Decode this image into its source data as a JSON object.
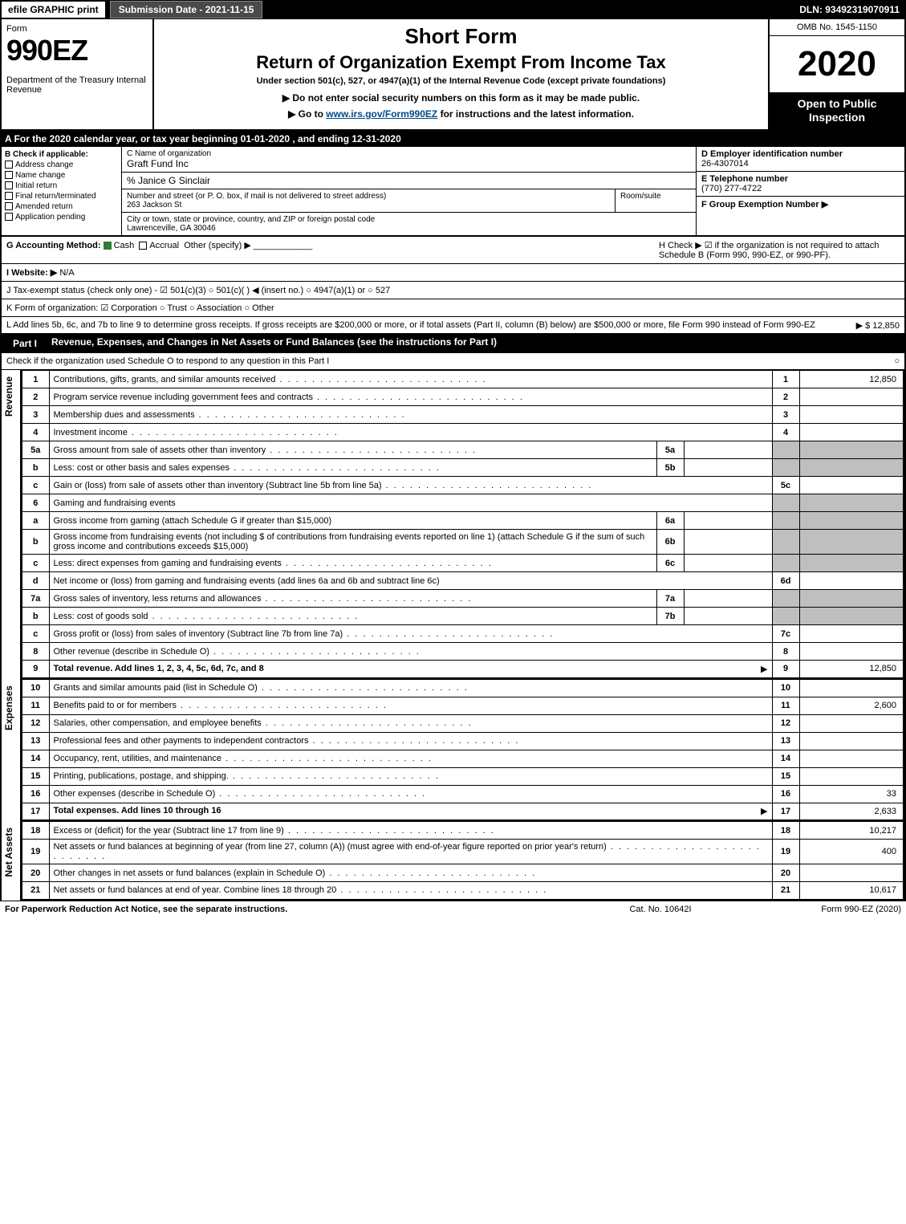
{
  "topbar": {
    "efile": "efile GRAPHIC print",
    "submission": "Submission Date - 2021-11-15",
    "dln": "DLN: 93492319070911"
  },
  "header": {
    "form_word": "Form",
    "form_num": "990EZ",
    "dept": "Department of the Treasury\nInternal Revenue",
    "shortform": "Short Form",
    "title": "Return of Organization Exempt From Income Tax",
    "subtitle": "Under section 501(c), 527, or 4947(a)(1) of the Internal Revenue Code (except private foundations)",
    "notice1": "▶ Do not enter social security numbers on this form as it may be made public.",
    "notice2_pre": "▶ Go to ",
    "notice2_link": "www.irs.gov/Form990EZ",
    "notice2_post": " for instructions and the latest information.",
    "omb": "OMB No. 1545-1150",
    "year": "2020",
    "inspect": "Open to Public Inspection"
  },
  "period": "A For the 2020 calendar year, or tax year beginning 01-01-2020 , and ending 12-31-2020",
  "boxB": {
    "title": "B Check if applicable:",
    "opts": [
      "Address change",
      "Name change",
      "Initial return",
      "Final return/terminated",
      "Amended return",
      "Application pending"
    ]
  },
  "boxC": {
    "name_label": "C Name of organization",
    "name": "Graft Fund Inc",
    "care_of": "% Janice G Sinclair",
    "street_label": "Number and street (or P. O. box, if mail is not delivered to street address)",
    "street": "263 Jackson St",
    "room_label": "Room/suite",
    "city_label": "City or town, state or province, country, and ZIP or foreign postal code",
    "city": "Lawrenceville, GA  30046"
  },
  "boxD": {
    "ein_label": "D Employer identification number",
    "ein": "26-4307014",
    "tel_label": "E Telephone number",
    "tel": "(770) 277-4722",
    "group_label": "F Group Exemption Number  ▶"
  },
  "rowG": {
    "label": "G Accounting Method:",
    "cash": "Cash",
    "accrual": "Accrual",
    "other": "Other (specify) ▶"
  },
  "rowH": "H  Check ▶ ☑ if the organization is not required to attach Schedule B (Form 990, 990-EZ, or 990-PF).",
  "rowI": {
    "label": "I Website: ▶",
    "val": "N/A"
  },
  "rowJ": "J Tax-exempt status (check only one) - ☑ 501(c)(3)  ○ 501(c)(  ) ◀ (insert no.)  ○ 4947(a)(1) or  ○ 527",
  "rowK": "K Form of organization:  ☑ Corporation  ○ Trust  ○ Association  ○ Other",
  "rowL": {
    "text": "L Add lines 5b, 6c, and 7b to line 9 to determine gross receipts. If gross receipts are $200,000 or more, or if total assets (Part II, column (B) below) are $500,000 or more, file Form 990 instead of Form 990-EZ",
    "amount": "▶ $ 12,850"
  },
  "part1": {
    "label": "Part I",
    "title": "Revenue, Expenses, and Changes in Net Assets or Fund Balances (see the instructions for Part I)",
    "sub": "Check if the organization used Schedule O to respond to any question in this Part I",
    "sub_box": "○"
  },
  "sections": {
    "revenue": "Revenue",
    "expenses": "Expenses",
    "netassets": "Net Assets"
  },
  "lines": {
    "l1": {
      "n": "1",
      "d": "Contributions, gifts, grants, and similar amounts received",
      "rn": "1",
      "rv": "12,850"
    },
    "l2": {
      "n": "2",
      "d": "Program service revenue including government fees and contracts",
      "rn": "2",
      "rv": ""
    },
    "l3": {
      "n": "3",
      "d": "Membership dues and assessments",
      "rn": "3",
      "rv": ""
    },
    "l4": {
      "n": "4",
      "d": "Investment income",
      "rn": "4",
      "rv": ""
    },
    "l5a": {
      "n": "5a",
      "d": "Gross amount from sale of assets other than inventory",
      "mn": "5a",
      "mv": ""
    },
    "l5b": {
      "n": "b",
      "d": "Less: cost or other basis and sales expenses",
      "mn": "5b",
      "mv": ""
    },
    "l5c": {
      "n": "c",
      "d": "Gain or (loss) from sale of assets other than inventory (Subtract line 5b from line 5a)",
      "rn": "5c",
      "rv": ""
    },
    "l6": {
      "n": "6",
      "d": "Gaming and fundraising events"
    },
    "l6a": {
      "n": "a",
      "d": "Gross income from gaming (attach Schedule G if greater than $15,000)",
      "mn": "6a",
      "mv": ""
    },
    "l6b": {
      "n": "b",
      "d": "Gross income from fundraising events (not including $                  of contributions from fundraising events reported on line 1) (attach Schedule G if the sum of such gross income and contributions exceeds $15,000)",
      "mn": "6b",
      "mv": ""
    },
    "l6c": {
      "n": "c",
      "d": "Less: direct expenses from gaming and fundraising events",
      "mn": "6c",
      "mv": ""
    },
    "l6d": {
      "n": "d",
      "d": "Net income or (loss) from gaming and fundraising events (add lines 6a and 6b and subtract line 6c)",
      "rn": "6d",
      "rv": ""
    },
    "l7a": {
      "n": "7a",
      "d": "Gross sales of inventory, less returns and allowances",
      "mn": "7a",
      "mv": ""
    },
    "l7b": {
      "n": "b",
      "d": "Less: cost of goods sold",
      "mn": "7b",
      "mv": ""
    },
    "l7c": {
      "n": "c",
      "d": "Gross profit or (loss) from sales of inventory (Subtract line 7b from line 7a)",
      "rn": "7c",
      "rv": ""
    },
    "l8": {
      "n": "8",
      "d": "Other revenue (describe in Schedule O)",
      "rn": "8",
      "rv": ""
    },
    "l9": {
      "n": "9",
      "d": "Total revenue. Add lines 1, 2, 3, 4, 5c, 6d, 7c, and 8",
      "rn": "9",
      "rv": "12,850",
      "arrow": "▶"
    },
    "l10": {
      "n": "10",
      "d": "Grants and similar amounts paid (list in Schedule O)",
      "rn": "10",
      "rv": ""
    },
    "l11": {
      "n": "11",
      "d": "Benefits paid to or for members",
      "rn": "11",
      "rv": "2,600"
    },
    "l12": {
      "n": "12",
      "d": "Salaries, other compensation, and employee benefits",
      "rn": "12",
      "rv": ""
    },
    "l13": {
      "n": "13",
      "d": "Professional fees and other payments to independent contractors",
      "rn": "13",
      "rv": ""
    },
    "l14": {
      "n": "14",
      "d": "Occupancy, rent, utilities, and maintenance",
      "rn": "14",
      "rv": ""
    },
    "l15": {
      "n": "15",
      "d": "Printing, publications, postage, and shipping.",
      "rn": "15",
      "rv": ""
    },
    "l16": {
      "n": "16",
      "d": "Other expenses (describe in Schedule O)",
      "rn": "16",
      "rv": "33"
    },
    "l17": {
      "n": "17",
      "d": "Total expenses. Add lines 10 through 16",
      "rn": "17",
      "rv": "2,633",
      "arrow": "▶"
    },
    "l18": {
      "n": "18",
      "d": "Excess or (deficit) for the year (Subtract line 17 from line 9)",
      "rn": "18",
      "rv": "10,217"
    },
    "l19": {
      "n": "19",
      "d": "Net assets or fund balances at beginning of year (from line 27, column (A)) (must agree with end-of-year figure reported on prior year's return)",
      "rn": "19",
      "rv": "400"
    },
    "l20": {
      "n": "20",
      "d": "Other changes in net assets or fund balances (explain in Schedule O)",
      "rn": "20",
      "rv": ""
    },
    "l21": {
      "n": "21",
      "d": "Net assets or fund balances at end of year. Combine lines 18 through 20",
      "rn": "21",
      "rv": "10,617"
    }
  },
  "footer": {
    "left": "For Paperwork Reduction Act Notice, see the separate instructions.",
    "mid": "Cat. No. 10642I",
    "right": "Form 990-EZ (2020)"
  },
  "colors": {
    "black": "#000000",
    "white": "#ffffff",
    "gray_shade": "#bfbfbf",
    "darkgray": "#4a4a4a",
    "link": "#004b87",
    "green_check": "#2e7d32"
  }
}
